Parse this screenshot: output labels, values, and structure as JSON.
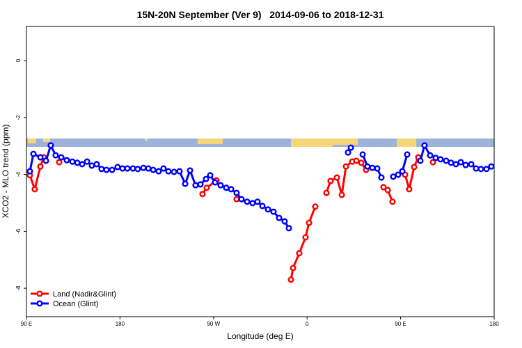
{
  "chart_data": {
    "type": "line",
    "title": "15N-20N September (Ver 9)   2014-09-06 to 2018-12-31",
    "x_label": "Longitude (deg E)",
    "y_label": "XCO2 - MLO trend (ppm)",
    "xlim": [
      90,
      540
    ],
    "xticks": [
      {
        "value": 90,
        "label": "90 E"
      },
      180,
      {
        "value": 270,
        "label": "90 W"
      },
      {
        "value": 360,
        "label": "0"
      },
      {
        "value": 450,
        "label": "90 E"
      },
      {
        "value": 540,
        "label": "180"
      }
    ],
    "ylim": [
      -9,
      1.2
    ],
    "yticks": [
      0,
      -2,
      -4,
      -6,
      -8
    ],
    "legend": "bottom-left",
    "series": [
      {
        "name": "Land (Nadir&Glint)",
        "color": "#ff0000",
        "x": [
          93.3,
          98.0,
          103.4,
          106.7,
          null,
          121.5,
          null,
          259.4,
          263.4,
          272.8,
          null,
          292.2,
          null,
          344.5,
          346.5,
          352.5,
          358.5,
          361.9,
          367.9,
          null,
          378.6,
          382.6,
          388.7,
          393.4,
          397.4,
          403.4,
          407.4,
          412.1,
          416.8,
          null,
          433.5,
          437.6,
          442.2,
          null,
          454.3,
          458.3,
          463.0,
          467.0,
          null,
          481.1
        ],
        "values": [
          -4.03,
          -4.52,
          -3.72,
          -3.4,
          null,
          -3.57,
          null,
          -4.69,
          -4.47,
          -4.21,
          null,
          -4.87,
          null,
          -7.7,
          -7.29,
          -6.77,
          -6.21,
          -5.7,
          -5.13,
          null,
          -4.65,
          -4.23,
          -4.11,
          -4.72,
          -3.72,
          -3.55,
          -3.52,
          -3.59,
          -3.84,
          null,
          -4.45,
          -4.55,
          -4.96,
          null,
          -4.01,
          -4.52,
          -3.74,
          -3.4,
          null,
          -3.57
        ]
      },
      {
        "name": "Ocean (Glint)",
        "color": "#0000ff",
        "x": [
          93.3,
          96.7,
          103.4,
          108.8,
          113.4,
          118.1,
          123.5,
          128.8,
          134.2,
          138.9,
          143.6,
          148.3,
          152.9,
          157.6,
          162.3,
          167.0,
          172.4,
          177.7,
          182.4,
          187.1,
          192.5,
          197.1,
          202.5,
          207.2,
          211.9,
          217.2,
          221.9,
          226.6,
          232.0,
          237.3,
          242.7,
          247.4,
          252.7,
          257.4,
          262.8,
          266.8,
          271.5,
          276.8,
          282.2,
          286.9,
          292.2,
          296.9,
          302.3,
          307.6,
          312.3,
          317.0,
          322.4,
          327.7,
          333.1,
          338.4,
          342.5,
          null,
          399.4,
          402.1,
          null,
          413.5,
          418.1,
          422.8,
          427.5,
          431.5,
          null,
          442.9,
          447.6,
          451.6,
          456.3,
          null,
          469.0,
          473.0,
          478.4,
          483.8,
          488.4,
          493.8,
          498.5,
          503.2,
          507.9,
          512.6,
          517.9,
          522.6,
          527.3,
          532.6,
          537.3
        ],
        "values": [
          -3.89,
          -3.28,
          -3.4,
          -3.52,
          -2.98,
          -3.33,
          -3.4,
          -3.5,
          -3.55,
          -3.59,
          -3.64,
          -3.55,
          -3.69,
          -3.64,
          -3.81,
          -3.84,
          -3.84,
          -3.74,
          -3.79,
          -3.79,
          -3.79,
          -3.81,
          -3.77,
          -3.79,
          -3.84,
          -3.89,
          -3.79,
          -3.89,
          -3.91,
          -3.89,
          -4.33,
          -3.86,
          -4.38,
          -4.35,
          -4.16,
          -4.03,
          -4.28,
          -4.38,
          -4.47,
          -4.52,
          -4.65,
          -4.87,
          -4.96,
          -5.01,
          -4.96,
          -5.11,
          -5.23,
          -5.31,
          -5.53,
          -5.65,
          -5.89,
          null,
          -3.23,
          -3.06,
          null,
          -3.3,
          -3.72,
          -3.77,
          -3.79,
          -4.11,
          null,
          -4.08,
          -4.01,
          -3.89,
          -3.3,
          null,
          -3.52,
          -2.98,
          -3.33,
          -3.42,
          -3.47,
          -3.52,
          -3.59,
          -3.64,
          -3.57,
          -3.67,
          -3.64,
          -3.79,
          -3.81,
          -3.81,
          -3.72
        ]
      }
    ]
  }
}
